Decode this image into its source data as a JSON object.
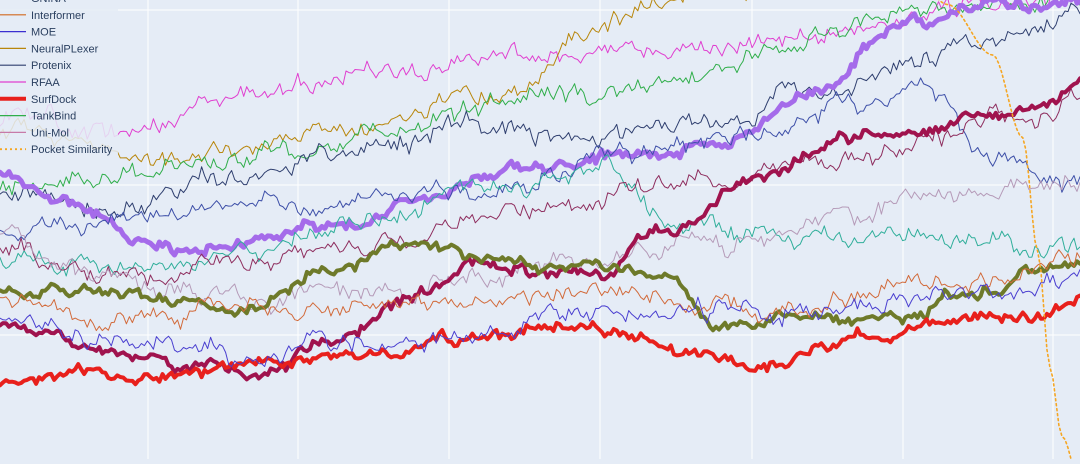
{
  "chart_data": {
    "type": "line",
    "title": "",
    "xlabel": "",
    "ylabel": "",
    "grid": true,
    "legend_placement": "top-left",
    "background": "#e5ecf6",
    "grid_color": "#ffffff",
    "n_points": 360,
    "xlim": [
      0,
      359
    ],
    "ylim": [
      0,
      100
    ],
    "legend": [
      {
        "name": "GNINA",
        "color": "#4d7a35",
        "width": 1.2,
        "dash": "none"
      },
      {
        "name": "Interformer",
        "color": "#d2691e",
        "width": 1.2,
        "dash": "none"
      },
      {
        "name": "MOE",
        "color": "#3b2fd0",
        "width": 1.2,
        "dash": "none"
      },
      {
        "name": "NeuralPLexer",
        "color": "#b8860b",
        "width": 1.2,
        "dash": "none"
      },
      {
        "name": "Protenix",
        "color": "#2f3f6f",
        "width": 1.2,
        "dash": "none"
      },
      {
        "name": "RFAA",
        "color": "#e040d0",
        "width": 1.2,
        "dash": "none"
      },
      {
        "name": "SurfDock",
        "color": "#e8201c",
        "width": 4,
        "dash": "none"
      },
      {
        "name": "TankBind",
        "color": "#2fae4a",
        "width": 1.2,
        "dash": "none"
      },
      {
        "name": "Uni-Mol",
        "color": "#c77aa8",
        "width": 1.2,
        "dash": "none"
      },
      {
        "name": "Pocket Similarity",
        "color": "#f5a623",
        "width": 1.8,
        "dash": "2,3"
      }
    ],
    "series": [
      {
        "color": "#e040d0",
        "width": 1,
        "dash": "none",
        "seed": 11,
        "anchors": [
          [
            0,
            74
          ],
          [
            40,
            70
          ],
          [
            80,
            79
          ],
          [
            130,
            86
          ],
          [
            180,
            88
          ],
          [
            230,
            89
          ],
          [
            270,
            92
          ],
          [
            300,
            96
          ],
          [
            330,
            98
          ],
          [
            359,
            101
          ]
        ]
      },
      {
        "color": "#b8860b",
        "width": 1,
        "dash": "none",
        "seed": 12,
        "anchors": [
          [
            0,
            71
          ],
          [
            60,
            66
          ],
          [
            120,
            73
          ],
          [
            170,
            80
          ],
          [
            200,
            93
          ],
          [
            215,
            100
          ],
          [
            240,
            103
          ],
          [
            359,
            105
          ]
        ]
      },
      {
        "color": "#2fae4a",
        "width": 1,
        "dash": "none",
        "seed": 13,
        "anchors": [
          [
            0,
            60
          ],
          [
            50,
            63
          ],
          [
            100,
            67
          ],
          [
            140,
            73
          ],
          [
            180,
            79
          ],
          [
            230,
            82
          ],
          [
            260,
            90
          ],
          [
            300,
            97
          ],
          [
            340,
            100
          ],
          [
            359,
            101
          ]
        ]
      },
      {
        "color": "#2f3f6f",
        "width": 1,
        "dash": "none",
        "seed": 14,
        "anchors": [
          [
            0,
            58
          ],
          [
            40,
            56
          ],
          [
            80,
            61
          ],
          [
            120,
            68
          ],
          [
            160,
            73
          ],
          [
            200,
            70
          ],
          [
            240,
            73
          ],
          [
            270,
            80
          ],
          [
            300,
            86
          ],
          [
            340,
            92
          ],
          [
            359,
            98
          ]
        ]
      },
      {
        "color": "#a56bea",
        "width": 5,
        "dash": "none",
        "seed": 15,
        "anchors": [
          [
            0,
            62
          ],
          [
            30,
            54
          ],
          [
            50,
            47
          ],
          [
            80,
            47
          ],
          [
            110,
            50
          ],
          [
            140,
            57
          ],
          [
            170,
            63
          ],
          [
            200,
            66
          ],
          [
            240,
            70
          ],
          [
            270,
            80
          ],
          [
            300,
            95
          ],
          [
            330,
            99
          ],
          [
            359,
            101
          ]
        ]
      },
      {
        "color": "#3d4fa8",
        "width": 1,
        "dash": "none",
        "seed": 16,
        "anchors": [
          [
            0,
            50
          ],
          [
            40,
            52
          ],
          [
            80,
            56
          ],
          [
            120,
            57
          ],
          [
            160,
            60
          ],
          [
            200,
            64
          ],
          [
            240,
            70
          ],
          [
            280,
            77
          ],
          [
            310,
            80
          ],
          [
            330,
            66
          ],
          [
            359,
            60
          ]
        ]
      },
      {
        "color": "#2fae9a",
        "width": 1,
        "dash": "none",
        "seed": 17,
        "anchors": [
          [
            0,
            43
          ],
          [
            40,
            42
          ],
          [
            80,
            45
          ],
          [
            120,
            52
          ],
          [
            160,
            58
          ],
          [
            200,
            63
          ],
          [
            220,
            53
          ],
          [
            260,
            47
          ],
          [
            300,
            48
          ],
          [
            340,
            46
          ],
          [
            359,
            47
          ]
        ]
      },
      {
        "color": "#8e2d5e",
        "width": 1,
        "dash": "none",
        "seed": 18,
        "anchors": [
          [
            0,
            46
          ],
          [
            40,
            40
          ],
          [
            80,
            44
          ],
          [
            130,
            47
          ],
          [
            160,
            52
          ],
          [
            200,
            57
          ],
          [
            240,
            61
          ],
          [
            280,
            65
          ],
          [
            310,
            70
          ],
          [
            340,
            74
          ],
          [
            359,
            80
          ]
        ]
      },
      {
        "color": "#b59ab8",
        "width": 1,
        "dash": "none",
        "seed": 19,
        "anchors": [
          [
            0,
            48
          ],
          [
            40,
            38
          ],
          [
            80,
            35
          ],
          [
            120,
            37
          ],
          [
            160,
            40
          ],
          [
            200,
            44
          ],
          [
            240,
            47
          ],
          [
            280,
            52
          ],
          [
            310,
            57
          ],
          [
            340,
            60
          ],
          [
            359,
            62
          ]
        ]
      },
      {
        "color": "#a0134e",
        "width": 4,
        "dash": "none",
        "seed": 20,
        "anchors": [
          [
            0,
            29
          ],
          [
            30,
            25
          ],
          [
            60,
            20
          ],
          [
            90,
            19
          ],
          [
            110,
            26
          ],
          [
            140,
            36
          ],
          [
            160,
            42
          ],
          [
            180,
            40
          ],
          [
            200,
            40
          ],
          [
            220,
            50
          ],
          [
            250,
            60
          ],
          [
            280,
            70
          ],
          [
            310,
            72
          ],
          [
            330,
            75
          ],
          [
            350,
            77
          ],
          [
            359,
            83
          ]
        ]
      },
      {
        "color": "#6e7a2a",
        "width": 4,
        "dash": "none",
        "seed": 21,
        "anchors": [
          [
            0,
            36
          ],
          [
            40,
            36
          ],
          [
            80,
            33
          ],
          [
            110,
            42
          ],
          [
            140,
            47
          ],
          [
            160,
            44
          ],
          [
            190,
            42
          ],
          [
            220,
            41
          ],
          [
            240,
            30
          ],
          [
            270,
            31
          ],
          [
            300,
            31
          ],
          [
            330,
            38
          ],
          [
            359,
            42
          ]
        ]
      },
      {
        "color": "#d26a3a",
        "width": 1,
        "dash": "none",
        "seed": 22,
        "anchors": [
          [
            0,
            33
          ],
          [
            40,
            31
          ],
          [
            80,
            32
          ],
          [
            120,
            33
          ],
          [
            160,
            35
          ],
          [
            200,
            38
          ],
          [
            230,
            35
          ],
          [
            260,
            33
          ],
          [
            300,
            37
          ],
          [
            340,
            40
          ],
          [
            359,
            43
          ]
        ]
      },
      {
        "color": "#e8201c",
        "width": 4,
        "dash": "none",
        "seed": 23,
        "anchors": [
          [
            0,
            17
          ],
          [
            40,
            18
          ],
          [
            80,
            20
          ],
          [
            120,
            23
          ],
          [
            160,
            26
          ],
          [
            180,
            29
          ],
          [
            200,
            29
          ],
          [
            230,
            23
          ],
          [
            260,
            22
          ],
          [
            290,
            26
          ],
          [
            320,
            30
          ],
          [
            340,
            31
          ],
          [
            359,
            35
          ]
        ]
      },
      {
        "color": "#4a3fd0",
        "width": 1,
        "dash": "none",
        "seed": 24,
        "anchors": [
          [
            0,
            31
          ],
          [
            40,
            25
          ],
          [
            80,
            22
          ],
          [
            120,
            26
          ],
          [
            160,
            27
          ],
          [
            200,
            31
          ],
          [
            240,
            32
          ],
          [
            280,
            34
          ],
          [
            320,
            36
          ],
          [
            359,
            38
          ]
        ]
      },
      {
        "color": "#f5a623",
        "width": 1.6,
        "dash": "2,3",
        "seed": 25,
        "anchors": [
          [
            0,
            110
          ],
          [
            300,
            110
          ],
          [
            315,
            99
          ],
          [
            330,
            88
          ],
          [
            340,
            70
          ],
          [
            345,
            45
          ],
          [
            349,
            20
          ],
          [
            353,
            5
          ],
          [
            359,
            -5
          ]
        ]
      }
    ]
  }
}
